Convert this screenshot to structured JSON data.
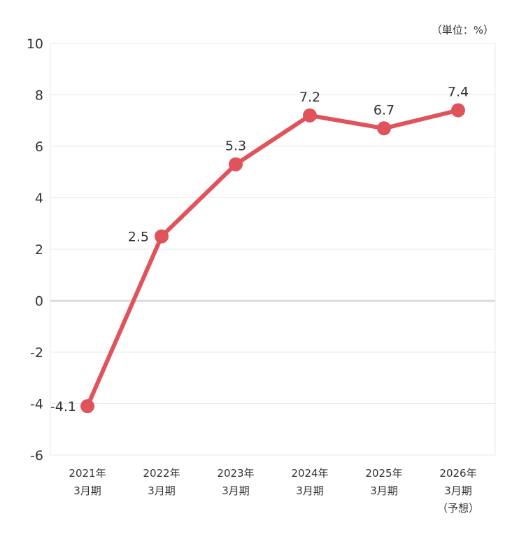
{
  "chart_data": {
    "type": "line",
    "unit_label": "（単位：%）",
    "categories": [
      [
        "2021年",
        "3月期"
      ],
      [
        "2022年",
        "3月期"
      ],
      [
        "2023年",
        "3月期"
      ],
      [
        "2024年",
        "3月期"
      ],
      [
        "2025年",
        "3月期"
      ],
      [
        "2026年",
        "3月期",
        "（予想）"
      ]
    ],
    "series": [
      {
        "values": [
          -4.1,
          2.5,
          5.3,
          7.2,
          6.7,
          7.4
        ],
        "labels": [
          "-4.1",
          "2.5",
          "5.3",
          "7.2",
          "6.7",
          "7.4"
        ],
        "color": "#e0535a"
      }
    ],
    "ylim": [
      -6,
      10
    ],
    "yticks": [
      -6,
      -4,
      -2,
      0,
      2,
      4,
      6,
      8,
      10
    ],
    "grid": true,
    "legend": "none"
  }
}
